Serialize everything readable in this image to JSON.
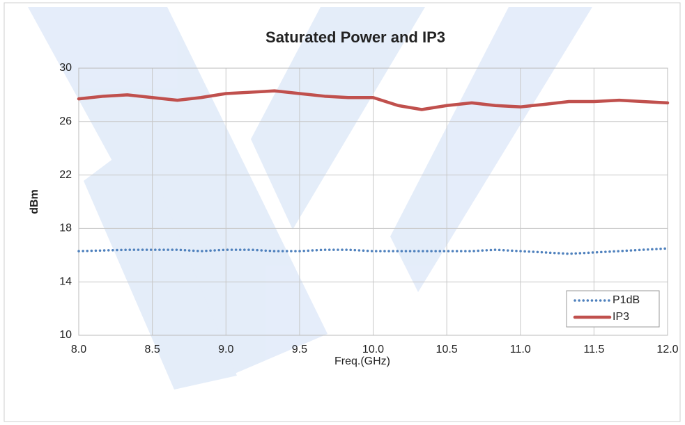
{
  "chart_data": {
    "type": "line",
    "title": "Saturated Power and IP3",
    "xlabel": "Freq.(GHz)",
    "ylabel": "dBm",
    "x": [
      8.0,
      8.17,
      8.33,
      8.5,
      8.67,
      8.83,
      9.0,
      9.17,
      9.33,
      9.5,
      9.67,
      9.83,
      10.0,
      10.17,
      10.33,
      10.5,
      10.67,
      10.83,
      11.0,
      11.17,
      11.33,
      11.5,
      11.67,
      11.83,
      12.0
    ],
    "series": [
      {
        "name": "P1dB",
        "color": "#4f81bd",
        "style": "dotted",
        "values": [
          16.3,
          16.35,
          16.4,
          16.4,
          16.4,
          16.3,
          16.4,
          16.4,
          16.3,
          16.3,
          16.4,
          16.4,
          16.3,
          16.3,
          16.3,
          16.3,
          16.3,
          16.4,
          16.3,
          16.2,
          16.1,
          16.2,
          16.3,
          16.4,
          16.5
        ]
      },
      {
        "name": "IP3",
        "color": "#c0504d",
        "style": "solid",
        "values": [
          27.7,
          27.9,
          28.0,
          27.8,
          27.6,
          27.8,
          28.1,
          28.2,
          28.3,
          28.1,
          27.9,
          27.8,
          27.8,
          27.2,
          26.9,
          27.2,
          27.4,
          27.2,
          27.1,
          27.3,
          27.5,
          27.5,
          27.6,
          27.5,
          27.4
        ]
      }
    ],
    "xlim": [
      8,
      12
    ],
    "xticks": [
      {
        "value": 8,
        "label": "8.0"
      },
      8.5,
      {
        "value": 9,
        "label": "9.0"
      },
      9.5,
      {
        "value": 10,
        "label": "10.0"
      },
      10.5,
      {
        "value": 11,
        "label": "11.0"
      },
      11.5,
      {
        "value": 12,
        "label": "12.0"
      }
    ],
    "ylim": [
      10,
      30
    ],
    "yticks": [
      10,
      14,
      18,
      22,
      26,
      30
    ],
    "grid": true,
    "legend": "lower right"
  }
}
